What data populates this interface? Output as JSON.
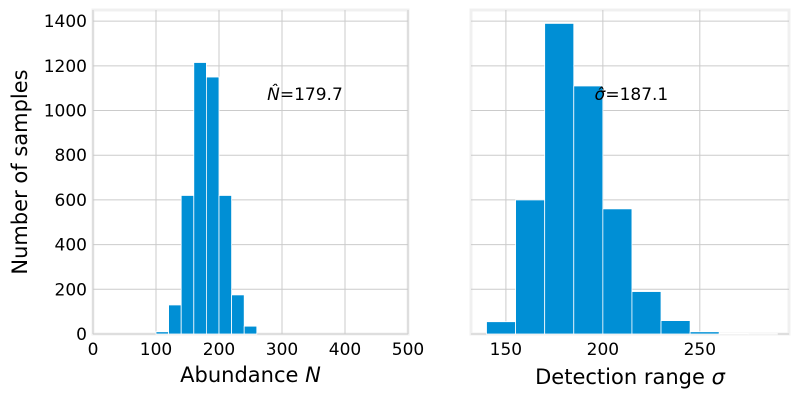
{
  "figure": {
    "ylabel": "Number of samples"
  },
  "chart_data": [
    {
      "type": "bar",
      "subtype": "histogram",
      "xlabel": "Abundance N",
      "xlabel_text": "Abundance ",
      "xlabel_var": "N",
      "ylabel": "Number of samples",
      "xlim": [
        0,
        500
      ],
      "ylim": [
        0,
        1450
      ],
      "xticks": [
        0,
        100,
        200,
        300,
        400,
        500
      ],
      "yticks": [
        0,
        200,
        400,
        600,
        800,
        1000,
        1200,
        1400
      ],
      "grid": true,
      "bin_edges": [
        100,
        120,
        140,
        160,
        180,
        200,
        220,
        240,
        260
      ],
      "values": [
        10,
        130,
        620,
        1215,
        1150,
        620,
        175,
        35
      ],
      "annotation": {
        "text": "N̂=179.7",
        "var": "N̂",
        "value": "=179.7",
        "at": [
          305,
          1075
        ]
      }
    },
    {
      "type": "bar",
      "subtype": "histogram",
      "xlabel": "Detection range σ",
      "xlabel_text": "Detection range ",
      "xlabel_var": "σ",
      "xlim": [
        132,
        296
      ],
      "ylim": [
        0,
        1450
      ],
      "xticks": [
        150,
        200,
        250
      ],
      "yticks": [
        0,
        200,
        400,
        600,
        800,
        1000,
        1200,
        1400
      ],
      "grid": true,
      "bin_edges": [
        140,
        155,
        170,
        185,
        200,
        215,
        230,
        245,
        260,
        275,
        290
      ],
      "values": [
        55,
        600,
        1390,
        1110,
        560,
        190,
        60,
        10,
        3,
        1
      ],
      "annotation": {
        "text": "σ̂=187.1",
        "var": "σ̂",
        "value": "=187.1",
        "at": [
          205,
          1075
        ]
      }
    }
  ],
  "colors": {
    "bar": "#008fd5",
    "grid": "#cbcbcb",
    "background": "#ffffff",
    "spine": "#f0f0f0",
    "bar_edge": "#ffffff"
  }
}
